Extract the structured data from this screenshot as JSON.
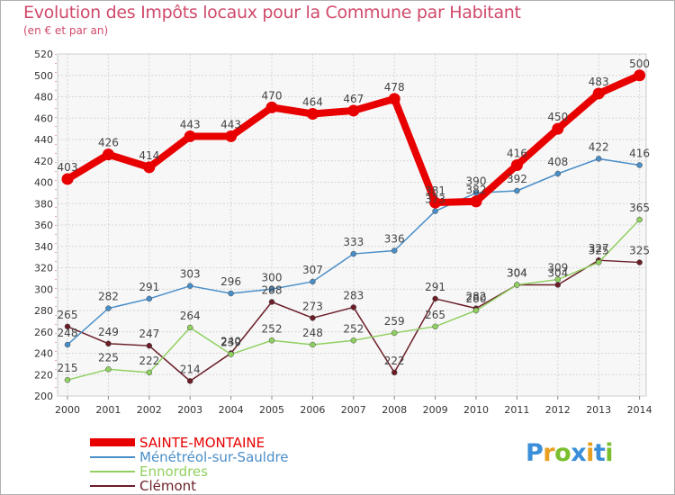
{
  "title": "Evolution des Impôts locaux pour la Commune par Habitant",
  "subtitle": "(en € et par an)",
  "brand": {
    "letters": [
      "P",
      "r",
      "o",
      "x",
      "i",
      "t",
      "i"
    ],
    "colors": [
      "#3a8fd8",
      "#e8a020",
      "#7bbf30",
      "#3a8fd8",
      "#e8a020",
      "#3a8fd8",
      "#7bbf30"
    ]
  },
  "chart_data": {
    "type": "line",
    "x": [
      "2000",
      "2001",
      "2002",
      "2003",
      "2004",
      "2005",
      "2006",
      "2007",
      "2008",
      "2009",
      "2010",
      "2011",
      "2012",
      "2013",
      "2014"
    ],
    "ylim": [
      200,
      520
    ],
    "yticks": [
      "200",
      "220",
      "240",
      "260",
      "280",
      "300",
      "320",
      "340",
      "360",
      "380",
      "400",
      "420",
      "440",
      "460",
      "480",
      "500",
      "520"
    ],
    "grid": true,
    "legend_position": "bottom-left",
    "series": [
      {
        "name": "Clémont",
        "color": "#6b1e28",
        "values": [
          265,
          249,
          247,
          214,
          240,
          288,
          273,
          283,
          222,
          291,
          282,
          304,
          304,
          327,
          325
        ]
      },
      {
        "name": "Ennordres",
        "color": "#90d060",
        "values": [
          215,
          225,
          222,
          264,
          239,
          252,
          248,
          252,
          259,
          265,
          280,
          304,
          309,
          325,
          365
        ]
      },
      {
        "name": "Ménétréol-sur-Sauldre",
        "color": "#4a8ec8",
        "values": [
          248,
          282,
          291,
          303,
          296,
          300,
          307,
          333,
          336,
          373,
          390,
          392,
          408,
          422,
          416
        ]
      },
      {
        "name": "SAINTE-MONTAINE",
        "color": "#e80000",
        "values": [
          403,
          426,
          414,
          443,
          443,
          470,
          464,
          467,
          478,
          381,
          382,
          416,
          450,
          483,
          500
        ]
      }
    ],
    "data_labels": [
      [
        "265",
        "249",
        "247",
        "214",
        "240",
        "288",
        "273",
        "283",
        "222",
        "291",
        "282",
        "304",
        "304",
        "327",
        "325"
      ],
      [
        "215",
        "225",
        "222",
        "264",
        "239",
        "252",
        "248",
        "252",
        "259",
        "265",
        "280",
        "304",
        "309",
        "325",
        "365"
      ],
      [
        "248",
        "282",
        "291",
        "303",
        "296",
        "300",
        "307",
        "333",
        "336",
        "373",
        "390",
        "392",
        "408",
        "422",
        "416"
      ],
      [
        "403",
        "426",
        "414",
        "443",
        "443",
        "470",
        "464",
        "467",
        "478",
        "381",
        "382",
        "416",
        "450",
        "483",
        "500"
      ]
    ]
  }
}
